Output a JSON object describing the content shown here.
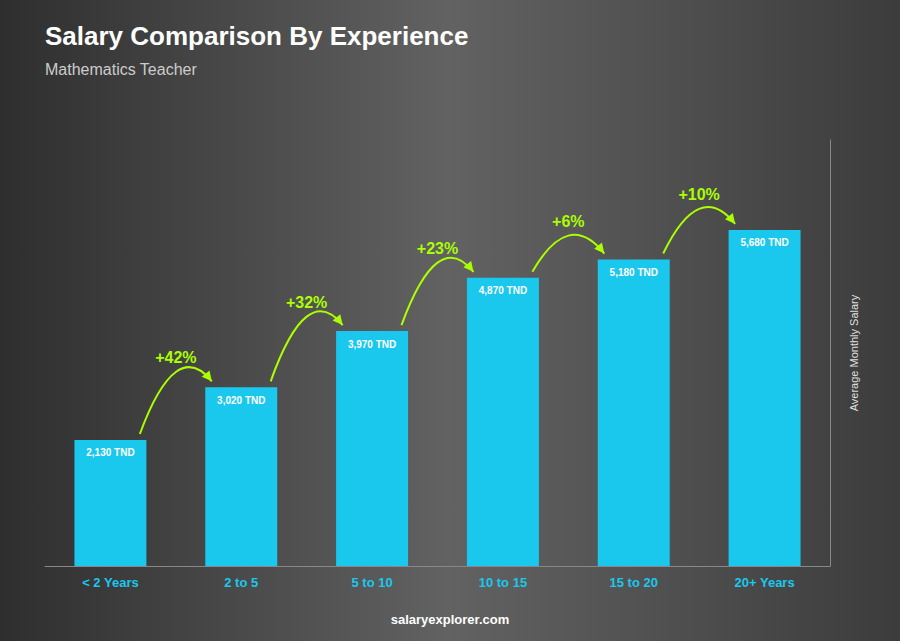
{
  "chart_data": {
    "type": "bar",
    "title": "Salary Comparison By Experience",
    "subtitle": "Mathematics Teacher",
    "ylabel": "Average Monthly Salary",
    "footer": "salaryexplorer.com",
    "categories": [
      "< 2 Years",
      "2 to 5",
      "5 to 10",
      "10 to 15",
      "15 to 20",
      "20+ Years"
    ],
    "values": [
      2130,
      3020,
      3970,
      4870,
      5180,
      5680
    ],
    "value_labels": [
      "2,130 TND",
      "3,020 TND",
      "3,970 TND",
      "4,870 TND",
      "5,180 TND",
      "5,680 TND"
    ],
    "data_labels": true,
    "annotations": [
      "+42%",
      "+32%",
      "+23%",
      "+6%",
      "+10%"
    ],
    "color": "#1ac8ed",
    "ylim": [
      0,
      7200
    ],
    "grid": false,
    "tick_labels": "x"
  }
}
